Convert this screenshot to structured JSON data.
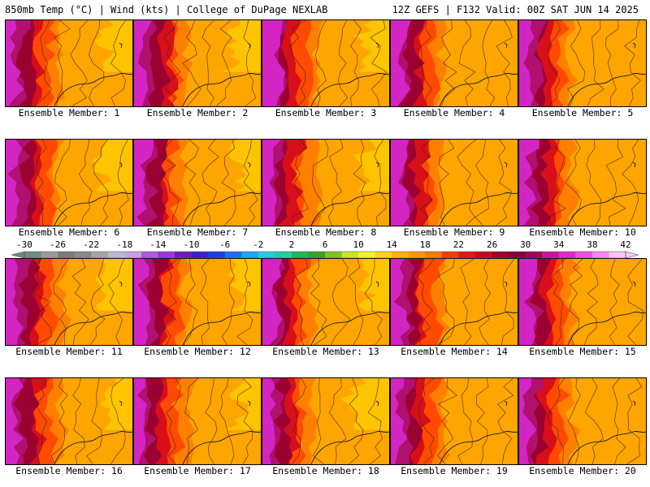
{
  "header": {
    "left": "850mb Temp (°C) | Wind (kts) | College of DuPage NEXLAB",
    "right": "12Z GEFS | F132 Valid: 00Z SAT JUN 14 2025"
  },
  "panels": [
    {
      "label": "Ensemble Member: 1"
    },
    {
      "label": "Ensemble Member: 2"
    },
    {
      "label": "Ensemble Member: 3"
    },
    {
      "label": "Ensemble Member: 4"
    },
    {
      "label": "Ensemble Member: 5"
    },
    {
      "label": "Ensemble Member: 6"
    },
    {
      "label": "Ensemble Member: 7"
    },
    {
      "label": "Ensemble Member: 8"
    },
    {
      "label": "Ensemble Member: 9"
    },
    {
      "label": "Ensemble Member: 10"
    },
    {
      "label": "Ensemble Member: 11"
    },
    {
      "label": "Ensemble Member: 12"
    },
    {
      "label": "Ensemble Member: 13"
    },
    {
      "label": "Ensemble Member: 14"
    },
    {
      "label": "Ensemble Member: 15"
    },
    {
      "label": "Ensemble Member: 16"
    },
    {
      "label": "Ensemble Member: 17"
    },
    {
      "label": "Ensemble Member: 18"
    },
    {
      "label": "Ensemble Member: 19"
    },
    {
      "label": "Ensemble Member: 20"
    }
  ],
  "colorbar": {
    "tick_labels": [
      "-30",
      "-26",
      "-22",
      "-18",
      "-14",
      "-10",
      "-6",
      "-2",
      "2",
      "6",
      "10",
      "14",
      "18",
      "22",
      "26",
      "30",
      "34",
      "38",
      "42"
    ],
    "colors": [
      "#6f8f7f",
      "#9a9a9a",
      "#7c7c7c",
      "#8b8b8b",
      "#a5a5a5",
      "#b9b9d6",
      "#c8a0e6",
      "#b05adf",
      "#a132dc",
      "#6a1fb8",
      "#3a1fc8",
      "#1f3de0",
      "#1f6ff0",
      "#1fa5f5",
      "#1fd0e0",
      "#1fd0a0",
      "#20b85a",
      "#3aa02a",
      "#7cc51f",
      "#c8e61f",
      "#f5f51f",
      "#ffd21f",
      "#ffb400",
      "#ff9600",
      "#ff7800",
      "#f53c00",
      "#e61414",
      "#c80a1e",
      "#a0002a",
      "#82003c",
      "#a0005a",
      "#c8149b",
      "#e128c8",
      "#f050e6",
      "#ff82ff",
      "#ffc8ff"
    ]
  }
}
